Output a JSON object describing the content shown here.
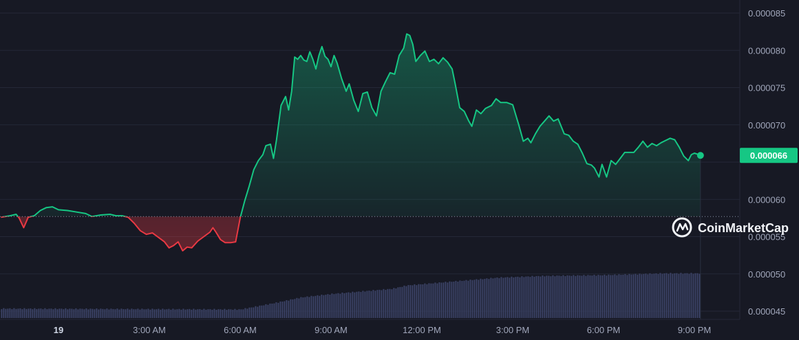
{
  "chart_data": {
    "type": "area",
    "y_tick_labels": [
      "0.000085",
      "0.000080",
      "0.000075",
      "0.000070",
      "0.000060",
      "0.000055",
      "0.000050",
      "0.000045"
    ],
    "y_tick_values": [
      8.5e-05,
      8e-05,
      7.5e-05,
      7e-05,
      6e-05,
      5.5e-05,
      5e-05,
      4.5e-05
    ],
    "x_tick_labels": [
      "19",
      "3:00 AM",
      "6:00 AM",
      "9:00 AM",
      "12:00 PM",
      "3:00 PM",
      "6:00 PM",
      "9:00 PM"
    ],
    "x_tick_hours": [
      0,
      3,
      6,
      9,
      12,
      15,
      18,
      21
    ],
    "ylim": [
      4.45e-05,
      8.65e-05
    ],
    "baseline_price": 5.77e-05,
    "current_price_label": "0.000066",
    "current_price": 6.59e-05,
    "grid": true,
    "colors": {
      "up": "#16c784",
      "down": "#ea3943",
      "volume": "#3b4266",
      "price_tag_bg": "#16c784",
      "background": "#171924"
    },
    "series": [
      {
        "kind": "price",
        "points": [
          [
            -1.9,
            5.76e-05
          ],
          [
            -1.6,
            5.78e-05
          ],
          [
            -1.4,
            5.8e-05
          ],
          [
            -1.3,
            5.75e-05
          ],
          [
            -1.15,
            5.62e-05
          ],
          [
            -1.0,
            5.76e-05
          ],
          [
            -0.8,
            5.78e-05
          ],
          [
            -0.6,
            5.85e-05
          ],
          [
            -0.4,
            5.89e-05
          ],
          [
            -0.2,
            5.9e-05
          ],
          [
            0.0,
            5.86e-05
          ],
          [
            0.3,
            5.85e-05
          ],
          [
            0.6,
            5.83e-05
          ],
          [
            0.9,
            5.81e-05
          ],
          [
            1.1,
            5.77e-05
          ],
          [
            1.4,
            5.79e-05
          ],
          [
            1.7,
            5.8e-05
          ],
          [
            1.9,
            5.78e-05
          ],
          [
            2.1,
            5.78e-05
          ],
          [
            2.3,
            5.76e-05
          ],
          [
            2.5,
            5.68e-05
          ],
          [
            2.7,
            5.58e-05
          ],
          [
            2.9,
            5.53e-05
          ],
          [
            3.1,
            5.55e-05
          ],
          [
            3.3,
            5.49e-05
          ],
          [
            3.5,
            5.43e-05
          ],
          [
            3.65,
            5.35e-05
          ],
          [
            3.8,
            5.38e-05
          ],
          [
            3.95,
            5.43e-05
          ],
          [
            4.1,
            5.31e-05
          ],
          [
            4.25,
            5.36e-05
          ],
          [
            4.4,
            5.35e-05
          ],
          [
            4.6,
            5.44e-05
          ],
          [
            4.8,
            5.5e-05
          ],
          [
            5.0,
            5.56e-05
          ],
          [
            5.1,
            5.62e-05
          ],
          [
            5.2,
            5.56e-05
          ],
          [
            5.35,
            5.46e-05
          ],
          [
            5.5,
            5.42e-05
          ],
          [
            5.7,
            5.42e-05
          ],
          [
            5.85,
            5.43e-05
          ],
          [
            6.0,
            5.75e-05
          ],
          [
            6.15,
            5.98e-05
          ],
          [
            6.3,
            6.18e-05
          ],
          [
            6.45,
            6.4e-05
          ],
          [
            6.6,
            6.52e-05
          ],
          [
            6.75,
            6.6e-05
          ],
          [
            6.85,
            6.72e-05
          ],
          [
            7.0,
            6.74e-05
          ],
          [
            7.1,
            6.55e-05
          ],
          [
            7.2,
            6.8e-05
          ],
          [
            7.35,
            7.26e-05
          ],
          [
            7.5,
            7.38e-05
          ],
          [
            7.6,
            7.2e-05
          ],
          [
            7.7,
            7.45e-05
          ],
          [
            7.8,
            7.91e-05
          ],
          [
            7.9,
            7.88e-05
          ],
          [
            8.0,
            7.93e-05
          ],
          [
            8.1,
            7.87e-05
          ],
          [
            8.2,
            7.85e-05
          ],
          [
            8.3,
            7.98e-05
          ],
          [
            8.4,
            7.88e-05
          ],
          [
            8.5,
            7.75e-05
          ],
          [
            8.6,
            7.93e-05
          ],
          [
            8.7,
            8.05e-05
          ],
          [
            8.8,
            7.92e-05
          ],
          [
            8.9,
            7.88e-05
          ],
          [
            9.0,
            7.78e-05
          ],
          [
            9.1,
            7.93e-05
          ],
          [
            9.2,
            7.83e-05
          ],
          [
            9.35,
            7.62e-05
          ],
          [
            9.5,
            7.45e-05
          ],
          [
            9.6,
            7.55e-05
          ],
          [
            9.75,
            7.33e-05
          ],
          [
            9.9,
            7.18e-05
          ],
          [
            10.05,
            7.42e-05
          ],
          [
            10.2,
            7.44e-05
          ],
          [
            10.35,
            7.23e-05
          ],
          [
            10.5,
            7.12e-05
          ],
          [
            10.65,
            7.45e-05
          ],
          [
            10.8,
            7.58e-05
          ],
          [
            10.95,
            7.7e-05
          ],
          [
            11.1,
            7.68e-05
          ],
          [
            11.25,
            7.93e-05
          ],
          [
            11.4,
            8.03e-05
          ],
          [
            11.5,
            8.22e-05
          ],
          [
            11.6,
            8.2e-05
          ],
          [
            11.7,
            8.08e-05
          ],
          [
            11.8,
            7.85e-05
          ],
          [
            11.95,
            7.93e-05
          ],
          [
            12.1,
            7.99e-05
          ],
          [
            12.25,
            7.85e-05
          ],
          [
            12.4,
            7.88e-05
          ],
          [
            12.55,
            7.82e-05
          ],
          [
            12.7,
            7.9e-05
          ],
          [
            12.85,
            7.84e-05
          ],
          [
            13.0,
            7.75e-05
          ],
          [
            13.1,
            7.55e-05
          ],
          [
            13.25,
            7.23e-05
          ],
          [
            13.4,
            7.18e-05
          ],
          [
            13.55,
            7.05e-05
          ],
          [
            13.65,
            6.98e-05
          ],
          [
            13.8,
            7.2e-05
          ],
          [
            13.95,
            7.15e-05
          ],
          [
            14.1,
            7.22e-05
          ],
          [
            14.3,
            7.26e-05
          ],
          [
            14.45,
            7.35e-05
          ],
          [
            14.6,
            7.3e-05
          ],
          [
            14.8,
            7.3e-05
          ],
          [
            15.0,
            7.27e-05
          ],
          [
            15.2,
            7e-05
          ],
          [
            15.35,
            6.78e-05
          ],
          [
            15.5,
            6.82e-05
          ],
          [
            15.6,
            6.76e-05
          ],
          [
            15.75,
            6.88e-05
          ],
          [
            15.9,
            6.98e-05
          ],
          [
            16.05,
            7.05e-05
          ],
          [
            16.2,
            7.12e-05
          ],
          [
            16.35,
            7.05e-05
          ],
          [
            16.5,
            7.08e-05
          ],
          [
            16.7,
            6.88e-05
          ],
          [
            16.85,
            6.86e-05
          ],
          [
            17.0,
            6.78e-05
          ],
          [
            17.15,
            6.74e-05
          ],
          [
            17.3,
            6.62e-05
          ],
          [
            17.45,
            6.48e-05
          ],
          [
            17.6,
            6.46e-05
          ],
          [
            17.7,
            6.42e-05
          ],
          [
            17.85,
            6.3e-05
          ],
          [
            17.95,
            6.47e-05
          ],
          [
            18.1,
            6.3e-05
          ],
          [
            18.25,
            6.52e-05
          ],
          [
            18.4,
            6.47e-05
          ],
          [
            18.55,
            6.55e-05
          ],
          [
            18.7,
            6.63e-05
          ],
          [
            18.85,
            6.63e-05
          ],
          [
            19.0,
            6.63e-05
          ],
          [
            19.15,
            6.7e-05
          ],
          [
            19.3,
            6.78e-05
          ],
          [
            19.45,
            6.7e-05
          ],
          [
            19.6,
            6.75e-05
          ],
          [
            19.75,
            6.72e-05
          ],
          [
            19.9,
            6.76e-05
          ],
          [
            20.05,
            6.79e-05
          ],
          [
            20.2,
            6.82e-05
          ],
          [
            20.35,
            6.8e-05
          ],
          [
            20.5,
            6.7e-05
          ],
          [
            20.65,
            6.58e-05
          ],
          [
            20.8,
            6.52e-05
          ],
          [
            20.9,
            6.6e-05
          ],
          [
            21.0,
            6.62e-05
          ],
          [
            21.15,
            6.6e-05
          ],
          [
            21.2,
            6.59e-05
          ]
        ]
      },
      {
        "kind": "volume",
        "start_hour": -1.9,
        "end_hour": 21.2,
        "relative_levels": [
          [
            -1.9,
            0.11
          ],
          [
            6.0,
            0.1
          ],
          [
            6.6,
            0.14
          ],
          [
            7.2,
            0.18
          ],
          [
            8.0,
            0.24
          ],
          [
            9.0,
            0.28
          ],
          [
            10.0,
            0.31
          ],
          [
            11.0,
            0.34
          ],
          [
            11.5,
            0.38
          ],
          [
            12.5,
            0.41
          ],
          [
            13.5,
            0.44
          ],
          [
            14.5,
            0.47
          ],
          [
            16.0,
            0.49
          ],
          [
            18.0,
            0.5
          ],
          [
            20.0,
            0.52
          ],
          [
            21.2,
            0.52
          ]
        ]
      }
    ]
  },
  "watermark": {
    "text": "CoinMarketCap"
  }
}
